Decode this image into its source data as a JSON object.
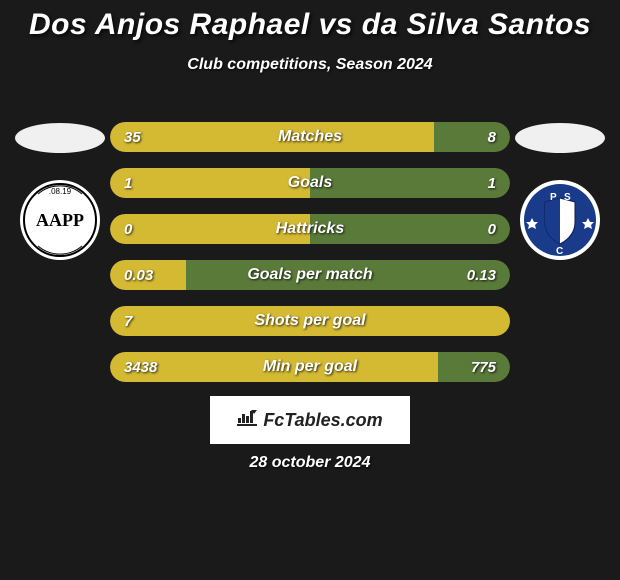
{
  "title": "Dos Anjos Raphael vs da Silva Santos",
  "subtitle": "Club competitions, Season 2024",
  "date": "28 october 2024",
  "watermark": "FcTables.com",
  "colors": {
    "left_bar": "#d4b933",
    "right_bar": "#5a7a3a",
    "background": "#1a1a1a",
    "text": "#ffffff"
  },
  "crests": {
    "left": {
      "bg": "#ffffff",
      "text": "AAPP",
      "text_color": "#000000",
      "sub": ".08.19"
    },
    "right": {
      "bg": "#1a3a8a",
      "text": "PSC",
      "text_color": "#ffffff"
    }
  },
  "stats": [
    {
      "label": "Matches",
      "left_val": "35",
      "right_val": "8",
      "left_pct": 81,
      "right_pct": 19
    },
    {
      "label": "Goals",
      "left_val": "1",
      "right_val": "1",
      "left_pct": 50,
      "right_pct": 50
    },
    {
      "label": "Hattricks",
      "left_val": "0",
      "right_val": "0",
      "left_pct": 50,
      "right_pct": 50
    },
    {
      "label": "Goals per match",
      "left_val": "0.03",
      "right_val": "0.13",
      "left_pct": 19,
      "right_pct": 81
    },
    {
      "label": "Shots per goal",
      "left_val": "7",
      "right_val": "",
      "left_pct": 100,
      "right_pct": 0
    },
    {
      "label": "Min per goal",
      "left_val": "3438",
      "right_val": "775",
      "left_pct": 82,
      "right_pct": 18
    }
  ]
}
